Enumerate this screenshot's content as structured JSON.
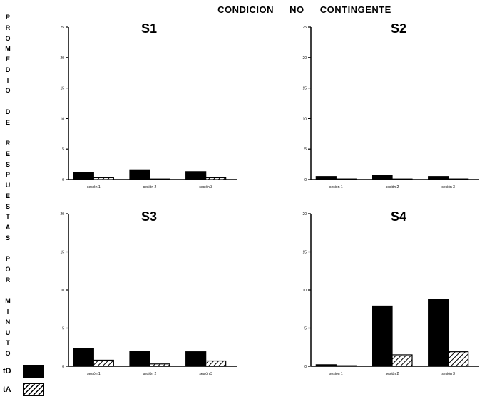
{
  "figure": {
    "title": "CONDICION NO CONTINGENTE",
    "ylabel": "PROMEDIO DE RESPUESTAS POR MINUTO",
    "legend": [
      {
        "label": "tD",
        "pattern": "solid"
      },
      {
        "label": "tA",
        "pattern": "hatch"
      }
    ],
    "colors": {
      "bar": "#000000",
      "axis": "#000000",
      "background": "#ffffff"
    }
  },
  "chart_data": [
    {
      "type": "bar",
      "title": "S1",
      "ylim": [
        0,
        25
      ],
      "yticks": [
        "0",
        "5",
        "10",
        "15",
        "20",
        "25"
      ],
      "categories": [
        "sesión 1",
        "sesión 2",
        "sesión 3"
      ],
      "series": [
        {
          "name": "tD",
          "values": [
            1.2,
            1.6,
            1.3
          ]
        },
        {
          "name": "tA",
          "values": [
            0.3,
            0.0,
            0.3
          ]
        }
      ]
    },
    {
      "type": "bar",
      "title": "S2",
      "ylim": [
        0,
        25
      ],
      "yticks": [
        "0",
        "5",
        "10",
        "15",
        "20",
        "25"
      ],
      "categories": [
        "sesión 1",
        "sesión 2",
        "sesión 3"
      ],
      "series": [
        {
          "name": "tD",
          "values": [
            0.5,
            0.7,
            0.5
          ]
        },
        {
          "name": "tA",
          "values": [
            0.1,
            0.0,
            0.1
          ]
        }
      ]
    },
    {
      "type": "bar",
      "title": "S3",
      "ylim": [
        0,
        20
      ],
      "yticks": [
        "0",
        "5",
        "10",
        "15",
        "20"
      ],
      "categories": [
        "sesión 1",
        "sesión 2",
        "sesión 3"
      ],
      "series": [
        {
          "name": "tD",
          "values": [
            2.3,
            2.0,
            1.9
          ]
        },
        {
          "name": "tA",
          "values": [
            0.8,
            0.3,
            0.7
          ]
        }
      ]
    },
    {
      "type": "bar",
      "title": "S4",
      "ylim": [
        0,
        20
      ],
      "yticks": [
        "0",
        "5",
        "10",
        "15",
        "20"
      ],
      "categories": [
        "sesión 1",
        "sesión 2",
        "sesión 3"
      ],
      "series": [
        {
          "name": "tD",
          "values": [
            0.2,
            7.9,
            8.8
          ]
        },
        {
          "name": "tA",
          "values": [
            0.0,
            1.5,
            1.9
          ]
        }
      ]
    }
  ]
}
